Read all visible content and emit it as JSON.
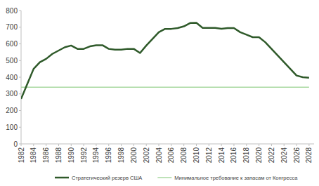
{
  "chart_data": {
    "type": "line",
    "x": [
      1982,
      1983,
      1984,
      1985,
      1986,
      1987,
      1988,
      1989,
      1990,
      1991,
      1992,
      1993,
      1994,
      1995,
      1996,
      1997,
      1998,
      1999,
      2000,
      2001,
      2002,
      2003,
      2004,
      2005,
      2006,
      2007,
      2008,
      2009,
      2010,
      2011,
      2012,
      2013,
      2014,
      2015,
      2016,
      2017,
      2018,
      2019,
      2020,
      2021,
      2022,
      2023,
      2024,
      2025,
      2026,
      2027,
      2028
    ],
    "series": [
      {
        "name": "Стратегический резерв США",
        "color": "#2f5a2a",
        "values": [
          270,
          360,
          450,
          490,
          510,
          540,
          560,
          580,
          590,
          570,
          570,
          585,
          592,
          592,
          570,
          565,
          565,
          570,
          570,
          545,
          590,
          630,
          670,
          690,
          690,
          695,
          705,
          725,
          726,
          696,
          696,
          696,
          691,
          695,
          695,
          670,
          655,
          640,
          640,
          610,
          570,
          530,
          490,
          450,
          410,
          400,
          397
        ]
      },
      {
        "name": "Минимальное требование к запасам от Конгресса",
        "color": "#a9d9a0",
        "values": [
          340,
          340,
          340,
          340,
          340,
          340,
          340,
          340,
          340,
          340,
          340,
          340,
          340,
          340,
          340,
          340,
          340,
          340,
          340,
          340,
          340,
          340,
          340,
          340,
          340,
          340,
          340,
          340,
          340,
          340,
          340,
          340,
          340,
          340,
          340,
          340,
          340,
          340,
          340,
          340,
          340,
          340,
          340,
          340,
          340,
          340,
          340
        ]
      }
    ],
    "xlim": [
      1982,
      2028.8
    ],
    "xticks": [
      1982,
      1984,
      1986,
      1988,
      1990,
      1992,
      1994,
      1996,
      1998,
      2000,
      2002,
      2004,
      2006,
      2008,
      2010,
      2012,
      2014,
      2016,
      2018,
      2020,
      2022,
      2024,
      2026,
      2028
    ],
    "ylim": [
      0,
      800
    ],
    "yticks": [
      0,
      100,
      200,
      300,
      400,
      500,
      600,
      700,
      800
    ],
    "grid": false,
    "legend": "bottom"
  }
}
